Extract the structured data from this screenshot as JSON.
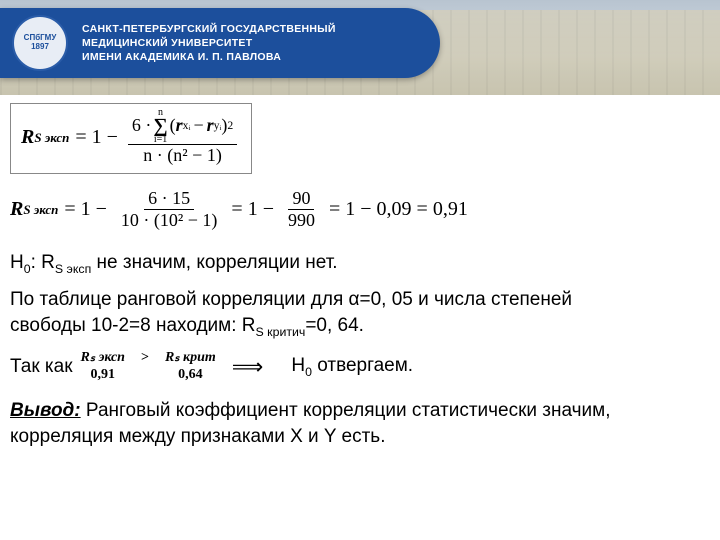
{
  "header": {
    "logo_text": "СПбГМУ\n1897",
    "university": "САНКТ-ПЕТЕРБУРГСКИЙ ГОСУДАРСТВЕННЫЙ\nМЕДИЦИНСКИЙ УНИВЕРСИТЕТ\nИМЕНИ АКАДЕМИКА И. П. ПАВЛОВА",
    "banner_color": "#1c4f9c"
  },
  "formula1": {
    "lhs_base": "R",
    "lhs_sub": "S эксп",
    "eq": "= 1 −",
    "num_prefix": "6 ·",
    "sum_top": "n",
    "sum_bot": "i=1",
    "sigma": "∑",
    "diff_open": "(",
    "r1_base": "r",
    "r1_sub": "xᵢ",
    "minus": "−",
    "r2_base": "r",
    "r2_sub": "yᵢ",
    "diff_close": ")",
    "power": "2",
    "den": "n · (n² − 1)"
  },
  "formula2": {
    "lhs_base": "R",
    "lhs_sub": "S эксп",
    "part1": "= 1 −",
    "frac1_num": "6 · 15",
    "frac1_den": "10 · (10² − 1)",
    "part2": "= 1 −",
    "frac2_num": "90",
    "frac2_den": "990",
    "part3": "= 1 − 0,09 = 0,91"
  },
  "hypothesis": {
    "h0": "Н",
    "h0_sub": "0",
    "h0_text": ":  R",
    "h0_rsub": "S эксп",
    "h0_tail": "  не значим, корреляции нет."
  },
  "table_text": {
    "line1": "По таблице ранговой корреляции для α=0, 05 и числа степеней",
    "line2_a": " свободы 10-2=8 находим: R",
    "line2_sub": "S критич",
    "line2_b": "=0, 64."
  },
  "so": {
    "label": "Так как",
    "top_l": "Rₛ эксп",
    "top_gt": ">",
    "top_r": "Rₛ крит",
    "bot_l": "0,91",
    "bot_r": "0,64",
    "arrow": "⟹",
    "h0": "Н",
    "h0_sub": "0",
    "reject": " отвергаем."
  },
  "conclusion": {
    "label": "Вывод:",
    "text": " Ранговый коэффициент корреляции статистически значим, корреляция между признаками X и Y есть."
  }
}
